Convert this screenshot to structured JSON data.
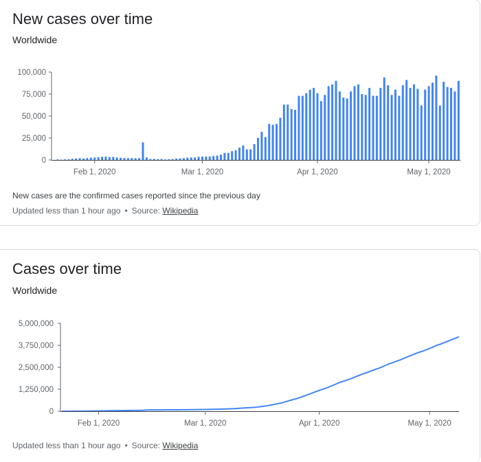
{
  "colors": {
    "bar": "#4285f4",
    "line": "#4285f4",
    "axis": "#5f6368",
    "baseline": "#3c4043"
  },
  "new_cases": {
    "title": "New cases over time",
    "subtitle": "Worldwide",
    "note": "New cases are the confirmed cases reported since the previous day",
    "updated": "Updated less than 1 hour ago",
    "source_label": "Source:",
    "source_link": "Wikipedia"
  },
  "total_cases": {
    "title": "Cases over time",
    "subtitle": "Worldwide",
    "updated": "Updated less than 1 hour ago",
    "source_label": "Source:",
    "source_link": "Wikipedia"
  },
  "chart_data": [
    {
      "type": "bar",
      "x_start": "2020-01-22",
      "y_ticks": [
        0,
        25000,
        50000,
        75000,
        100000
      ],
      "y_tick_labels": [
        "0",
        "25,000",
        "50,000",
        "75,000",
        "100,000"
      ],
      "ylim": [
        0,
        100000
      ],
      "x_ticks": [
        {
          "date": "2020-02-01",
          "label": "Feb 1, 2020"
        },
        {
          "date": "2020-03-01",
          "label": "Mar 1, 2020"
        },
        {
          "date": "2020-04-01",
          "label": "Apr 1, 2020"
        },
        {
          "date": "2020-05-01",
          "label": "May 1, 2020"
        }
      ],
      "values": [
        600,
        300,
        600,
        700,
        1300,
        1600,
        2000,
        1700,
        2100,
        2600,
        2800,
        3200,
        3600,
        3800,
        3300,
        3400,
        2800,
        2400,
        2200,
        2000,
        2100,
        2000,
        2000,
        20000,
        2800,
        1000,
        1200,
        900,
        1000,
        600,
        800,
        1000,
        1500,
        1800,
        2000,
        2600,
        2800,
        2800,
        3600,
        3800,
        3900,
        4000,
        4500,
        5000,
        6000,
        8000,
        8000,
        10000,
        11000,
        14000,
        16500,
        12000,
        12000,
        18000,
        25000,
        32000,
        26000,
        41000,
        40000,
        41000,
        48000,
        63000,
        63000,
        58000,
        57000,
        73000,
        73000,
        76000,
        80000,
        82000,
        76000,
        67000,
        74000,
        84000,
        86000,
        90000,
        78000,
        71000,
        70000,
        78000,
        84000,
        86000,
        75000,
        74000,
        82000,
        73000,
        73000,
        82000,
        94000,
        85000,
        74000,
        80000,
        73000,
        85000,
        91000,
        82000,
        86000,
        81000,
        62000,
        80000,
        84000,
        88000,
        96000,
        62000,
        89000,
        83000,
        82000,
        78000,
        90000
      ]
    },
    {
      "type": "line",
      "x_start": "2020-01-22",
      "y_ticks": [
        0,
        1250000,
        2500000,
        3750000,
        5000000
      ],
      "y_tick_labels": [
        "0",
        "1,250,000",
        "2,500,000",
        "3,750,000",
        "5,000,000"
      ],
      "ylim": [
        0,
        5000000
      ],
      "x_ticks": [
        {
          "date": "2020-02-01",
          "label": "Feb 1, 2020"
        },
        {
          "date": "2020-03-01",
          "label": "Mar 1, 2020"
        },
        {
          "date": "2020-04-01",
          "label": "Apr 1, 2020"
        },
        {
          "date": "2020-05-01",
          "label": "May 1, 2020"
        }
      ]
    }
  ]
}
